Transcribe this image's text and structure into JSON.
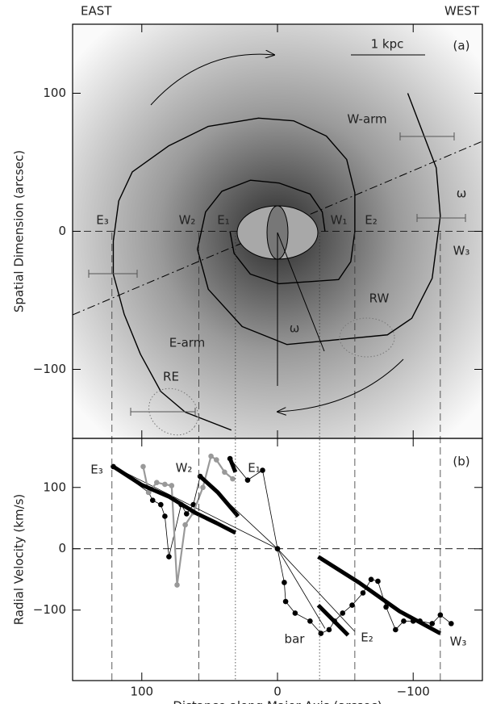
{
  "header": {
    "left": "EAST",
    "right": "WEST"
  },
  "chart_data": [
    {
      "type": "line",
      "ylabel": "Spatial Dimension (arcsec)",
      "xlim": [
        151,
        -151
      ],
      "ylim": [
        -150,
        150
      ],
      "xticks": [
        100,
        0,
        {
          "value": -100,
          "label": "−100"
        }
      ],
      "yticks": [
        {
          "value": -100,
          "label": "−100"
        },
        0,
        100
      ],
      "zero_line": true,
      "guides": [
        {
          "x": 122,
          "style": "dashed"
        },
        {
          "x": 58,
          "style": "dashed"
        },
        {
          "x": 31,
          "style": "dotted"
        },
        {
          "x": -31,
          "style": "dotted"
        },
        {
          "x": -57,
          "style": "dashed"
        },
        {
          "x": -120,
          "style": "dashed"
        }
      ],
      "series": [
        {
          "color": "#000",
          "width": 1.4,
          "x": [
            -96,
            -117,
            -120,
            -114,
            -99,
            -81,
            -7,
            26,
            51,
            59,
            53,
            41,
            20,
            -1,
            -24,
            -33,
            -35
          ],
          "values": [
            100,
            46,
            11,
            -34,
            -63,
            -75,
            -82,
            -69,
            -42,
            -13,
            14,
            29,
            37,
            35,
            27,
            14,
            0
          ]
        },
        {
          "color": "#000",
          "width": 1.4,
          "x": [
            35,
            32,
            20,
            -1,
            -45,
            -54,
            -57,
            -57,
            -51,
            -36,
            -12,
            14,
            51,
            80,
            107,
            117,
            121,
            121,
            113,
            101,
            86,
            68,
            34
          ],
          "values": [
            0,
            -16,
            -31,
            -38,
            -35,
            -22,
            0,
            28,
            52,
            69,
            80,
            82,
            76,
            62,
            43,
            22,
            -7,
            -31,
            -60,
            -89,
            -116,
            -131,
            -144
          ]
        }
      ],
      "annotations": [
        "1 kpc",
        "(a)",
        "W-arm",
        "ω",
        "E₃",
        "W₂",
        "E₁",
        "W₁",
        "E₂",
        "W₃",
        "RW",
        "E-arm",
        "ω",
        "RE"
      ]
    },
    {
      "type": "line",
      "ylabel": "Radial Velocity (km/s)",
      "xlabel": "Distance along Major Axis (arcsec)",
      "xlim": [
        151,
        -151
      ],
      "ylim": [
        -215,
        180
      ],
      "xticks": [
        100,
        0,
        {
          "value": -100,
          "label": "−100"
        }
      ],
      "yticks": [
        {
          "value": -100,
          "label": "−100"
        },
        0,
        100
      ],
      "zero_line": true,
      "series": [
        {
          "color": "#000",
          "width": 0.8,
          "x": [
            0,
            121
          ],
          "values": [
            0,
            134
          ]
        },
        {
          "color": "#000",
          "width": 0.8,
          "x": [
            0,
            57
          ],
          "values": [
            0,
            118
          ]
        },
        {
          "color": "#000",
          "width": 0.8,
          "x": [
            0,
            -57
          ],
          "values": [
            0,
            -135
          ]
        },
        {
          "color": "#000",
          "width": 0.8,
          "x": [
            0,
            -35
          ],
          "values": [
            0,
            -130
          ]
        },
        {
          "color": "#000",
          "width": 0.8,
          "markers": true,
          "x": [
            121,
            95,
            92,
            86,
            83,
            80,
            71,
            67,
            62,
            57
          ],
          "values": [
            134,
            92,
            79,
            72,
            53,
            -13,
            72,
            57,
            72,
            118
          ]
        },
        {
          "color": "#000",
          "width": 0.8,
          "markers": true,
          "x": [
            35,
            22,
            11,
            0
          ],
          "values": [
            147,
            112,
            128,
            0
          ]
        },
        {
          "color": "#000",
          "width": 0.8,
          "markers": true,
          "x": [
            0,
            -5,
            -6,
            -13,
            -24,
            -32,
            -38,
            -42,
            -48,
            -55,
            -63,
            -69,
            -74,
            -80,
            -87,
            -93,
            -100,
            -105,
            -114,
            -120,
            -128
          ],
          "values": [
            0,
            -55,
            -86,
            -105,
            -118,
            -138,
            -132,
            -118,
            -105,
            -92,
            -72,
            -50,
            -53,
            -95,
            -132,
            -118,
            -118,
            -118,
            -122,
            -108,
            -122
          ]
        },
        {
          "color": "#999",
          "width": 2.2,
          "markers": true,
          "x": [
            99,
            95,
            89,
            83,
            78,
            74,
            68,
            62,
            55,
            49,
            45,
            39,
            33
          ],
          "values": [
            134,
            92,
            108,
            105,
            103,
            -59,
            39,
            59,
            100,
            151,
            145,
            125,
            114
          ]
        },
        {
          "color": "#000",
          "width": 5,
          "x": [
            121,
            100,
            80,
            60,
            45,
            31
          ],
          "values": [
            134,
            104,
            85,
            58,
            42,
            26
          ]
        },
        {
          "color": "#000",
          "width": 5,
          "x": [
            57,
            44,
            29
          ],
          "values": [
            118,
            92,
            53
          ]
        },
        {
          "color": "#000",
          "width": 5,
          "x": [
            35,
            31
          ],
          "values": [
            147,
            125
          ]
        },
        {
          "color": "#000",
          "width": 5,
          "x": [
            -30,
            -52
          ],
          "values": [
            -92,
            -141
          ]
        },
        {
          "color": "#000",
          "width": 5,
          "x": [
            -30,
            -60,
            -90,
            -120
          ],
          "values": [
            -13,
            -55,
            -102,
            -138
          ]
        }
      ],
      "annotations": [
        "E₃",
        "W₂",
        "E₁",
        "(b)",
        "bar",
        "E₂",
        "W₃"
      ]
    }
  ]
}
